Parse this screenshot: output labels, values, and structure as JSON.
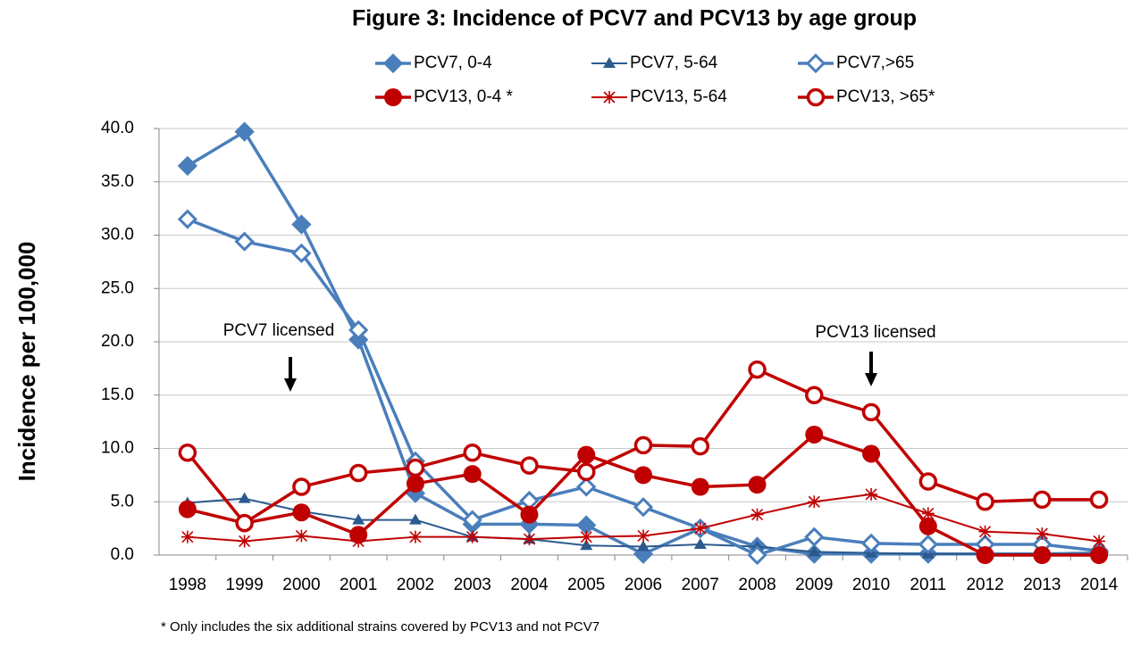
{
  "chart_data": {
    "type": "line",
    "title": "Figure 3: Incidence of PCV7 and PCV13 by age group",
    "y_label": "Incidence per 100,000",
    "categories": [
      "1998",
      "1999",
      "2000",
      "2001",
      "2002",
      "2003",
      "2004",
      "2005",
      "2006",
      "2007",
      "2008",
      "2009",
      "2010",
      "2011",
      "2012",
      "2013",
      "2014"
    ],
    "series": [
      {
        "name": "PCV7, 0-4",
        "color": "#4a7ebb",
        "marker": "diamond",
        "values": [
          36.5,
          39.7,
          31.0,
          20.2,
          5.8,
          2.9,
          2.9,
          2.8,
          0.1,
          2.5,
          0.8,
          0.1,
          0.1,
          0.1,
          0.1,
          0.1,
          0.2
        ]
      },
      {
        "name": "PCV7, 5-64",
        "color": "#2c5a8e",
        "marker": "triangle",
        "values": [
          4.9,
          5.3,
          4.1,
          3.3,
          3.3,
          1.7,
          1.5,
          0.9,
          0.8,
          1.0,
          0.8,
          0.3,
          0.2,
          0.1,
          0.1,
          0.1,
          0.1
        ]
      },
      {
        "name": "PCV7,>65",
        "color": "#4a7ebb",
        "marker": "open-diamond",
        "values": [
          31.5,
          29.4,
          28.3,
          21.1,
          8.8,
          3.3,
          5.1,
          6.4,
          4.5,
          2.5,
          0.0,
          1.7,
          1.1,
          1.0,
          1.0,
          1.0,
          0.4
        ]
      },
      {
        "name": "PCV13, 0-4 *",
        "color": "#c00000",
        "marker": "circle",
        "values": [
          4.3,
          3.0,
          4.0,
          1.9,
          6.7,
          7.6,
          3.8,
          9.4,
          7.5,
          6.4,
          6.6,
          11.3,
          9.5,
          2.7,
          0.0,
          0.0,
          0.0
        ]
      },
      {
        "name": "PCV13, 5-64",
        "color": "#c00000",
        "marker": "star",
        "values": [
          1.7,
          1.3,
          1.8,
          1.3,
          1.7,
          1.7,
          1.5,
          1.7,
          1.8,
          2.5,
          3.8,
          5.0,
          5.7,
          3.9,
          2.2,
          2.0,
          1.3
        ]
      },
      {
        "name": "PCV13, >65*",
        "color": "#c00000",
        "marker": "open-circle",
        "values": [
          9.6,
          3.0,
          6.4,
          7.7,
          8.2,
          9.6,
          8.4,
          7.8,
          10.3,
          10.2,
          17.4,
          15.0,
          13.4,
          6.9,
          5.0,
          5.2,
          5.2
        ]
      }
    ],
    "ylim": [
      0,
      40
    ],
    "yticks": [
      {
        "value": 0,
        "label": "0.0"
      },
      {
        "value": 5,
        "label": "5.0"
      },
      {
        "value": 10,
        "label": "10.0"
      },
      {
        "value": 15,
        "label": "15.0"
      },
      {
        "value": 20,
        "label": "20.0"
      },
      {
        "value": 25,
        "label": "25.0"
      },
      {
        "value": 30,
        "label": "30.0"
      },
      {
        "value": 35,
        "label": "35.0"
      },
      {
        "value": 40,
        "label": "40.0"
      }
    ],
    "grid": true,
    "annotations": [
      "PCV7 licensed",
      "PCV13 licensed"
    ],
    "footnote": "* Only includes the six additional strains covered by PCV13 and not PCV7"
  }
}
